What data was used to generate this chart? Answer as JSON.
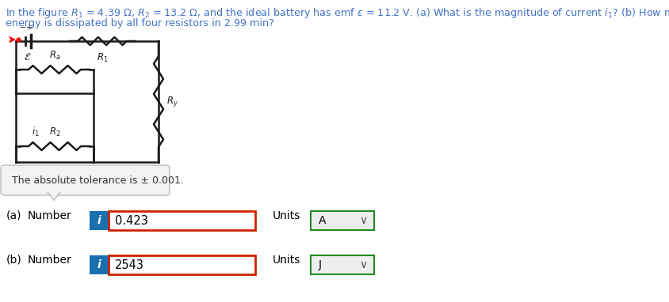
{
  "header1": "In the figure $R_1$ = 4.39 $\\Omega$, $R_2$ = 13.2 $\\Omega$, and the ideal battery has emf $\\varepsilon$ = 11.2 V. (a) What is the magnitude of current $i_1$? (b) How much",
  "header2": "energy is dissipated by all four resistors in 2.99 min?",
  "answer_a": "0.423",
  "answer_b": "2543",
  "unit_a": "A",
  "unit_b": "J",
  "tolerance_text": "The absolute tolerance is ± 0.001.",
  "bg_color": "#ffffff",
  "text_color": "#000000",
  "header_color": "#4472c4",
  "input_border_color": "#cc2200",
  "unit_border_color": "#228B22",
  "info_btn_color": "#1a6faf",
  "circuit_line_color": "#1a1a1a",
  "circuit_lw": 1.8,
  "fig_w": 8.44,
  "fig_h": 3.82,
  "dpi": 100
}
